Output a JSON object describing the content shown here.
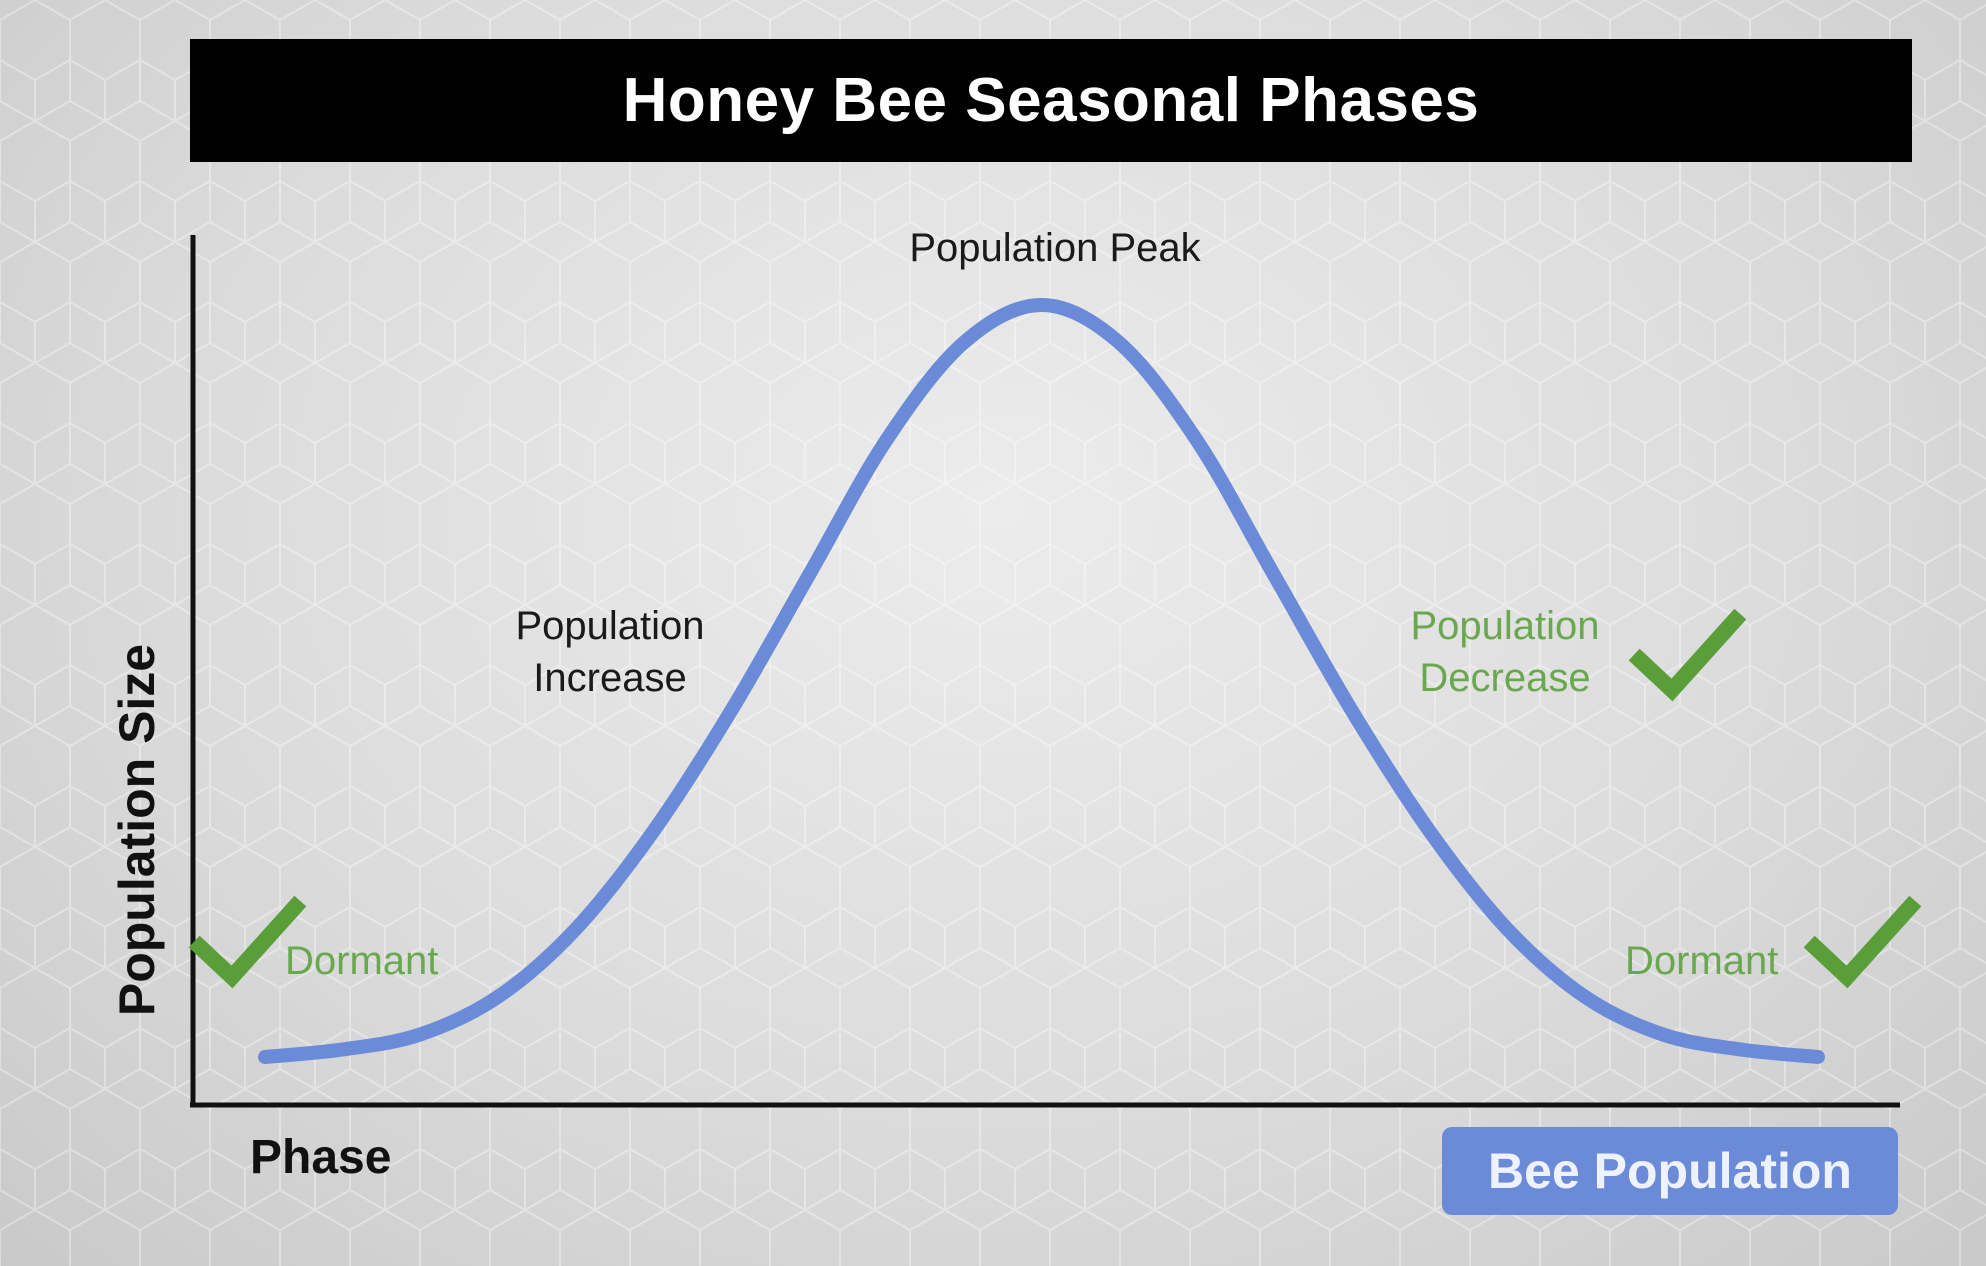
{
  "title": "Honey Bee Seasonal Phases",
  "colors": {
    "curve": "#6b8bd8",
    "title_bg": "#000000",
    "title_text": "#ffffff",
    "green_label": "#6aa84f",
    "check": "#5a9e3a",
    "legend_bg": "#6b8bd8"
  },
  "icons": {
    "check": "checkmark-icon"
  },
  "chart_data": {
    "type": "line",
    "title": "Honey Bee Seasonal Phases",
    "xlabel": "Phase",
    "ylabel": "Population Size",
    "grid": false,
    "axis_ticks": false,
    "legend": {
      "placement": "bottom-right",
      "entries": [
        "Bee Population"
      ]
    },
    "series": [
      {
        "name": "Bee Population",
        "x": [
          0.0,
          0.05,
          0.1,
          0.15,
          0.2,
          0.25,
          0.3,
          0.35,
          0.4,
          0.45,
          0.5,
          0.55,
          0.6,
          0.65,
          0.7,
          0.75,
          0.8,
          0.85,
          0.9,
          0.95,
          1.0
        ],
        "y": [
          0.0,
          0.01,
          0.03,
          0.08,
          0.17,
          0.3,
          0.46,
          0.64,
          0.82,
          0.95,
          1.0,
          0.95,
          0.82,
          0.64,
          0.46,
          0.3,
          0.17,
          0.08,
          0.03,
          0.01,
          0.0
        ]
      }
    ],
    "xlim": [
      0,
      1
    ],
    "ylim": [
      0,
      1
    ],
    "annotations": [
      {
        "text": "Population Peak",
        "style": "dark",
        "checked": false
      },
      {
        "text": "Population\nIncrease",
        "line1": "Population",
        "line2": "Increase",
        "style": "dark",
        "checked": false
      },
      {
        "text": "Population\nDecrease",
        "line1": "Population",
        "line2": "Decrease",
        "style": "green",
        "checked": true
      },
      {
        "text": "Dormant",
        "style": "green",
        "checked": true,
        "side": "left"
      },
      {
        "text": "Dormant",
        "style": "green",
        "checked": true,
        "side": "right"
      }
    ]
  }
}
